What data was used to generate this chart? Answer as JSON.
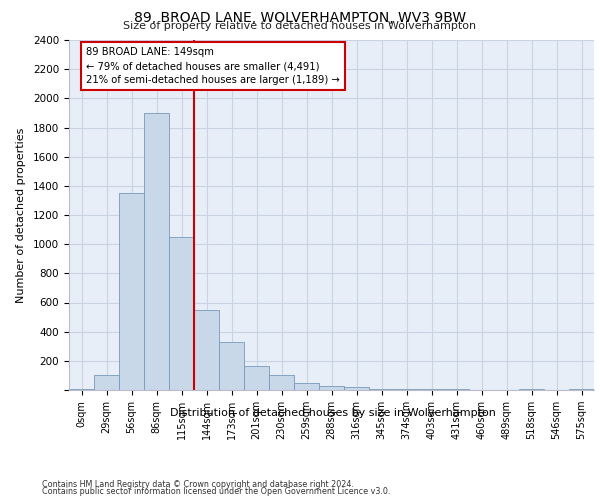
{
  "title1": "89, BROAD LANE, WOLVERHAMPTON, WV3 9BW",
  "title2": "Size of property relative to detached houses in Wolverhampton",
  "xlabel": "Distribution of detached houses by size in Wolverhampton",
  "ylabel": "Number of detached properties",
  "footer1": "Contains HM Land Registry data © Crown copyright and database right 2024.",
  "footer2": "Contains public sector information licensed under the Open Government Licence v3.0.",
  "bin_labels": [
    "0sqm",
    "29sqm",
    "56sqm",
    "86sqm",
    "115sqm",
    "144sqm",
    "173sqm",
    "201sqm",
    "230sqm",
    "259sqm",
    "288sqm",
    "316sqm",
    "345sqm",
    "374sqm",
    "403sqm",
    "431sqm",
    "460sqm",
    "489sqm",
    "518sqm",
    "546sqm",
    "575sqm"
  ],
  "bar_values": [
    10,
    100,
    1350,
    1900,
    1050,
    550,
    330,
    165,
    100,
    50,
    30,
    20,
    10,
    5,
    5,
    5,
    2,
    2,
    5,
    2,
    5
  ],
  "bar_color": "#c8d8e8",
  "bar_edge_color": "#7799bb",
  "ylim": [
    0,
    2400
  ],
  "yticks": [
    0,
    200,
    400,
    600,
    800,
    1000,
    1200,
    1400,
    1600,
    1800,
    2000,
    2200,
    2400
  ],
  "property_line_x": 4.5,
  "annotation_line1": "89 BROAD LANE: 149sqm",
  "annotation_line2": "← 79% of detached houses are smaller (4,491)",
  "annotation_line3": "21% of semi-detached houses are larger (1,189) →",
  "vline_color": "#cc0000",
  "annotation_box_edge": "#cc0000",
  "grid_color": "#c8d4e4",
  "background_color": "#e8eef8"
}
